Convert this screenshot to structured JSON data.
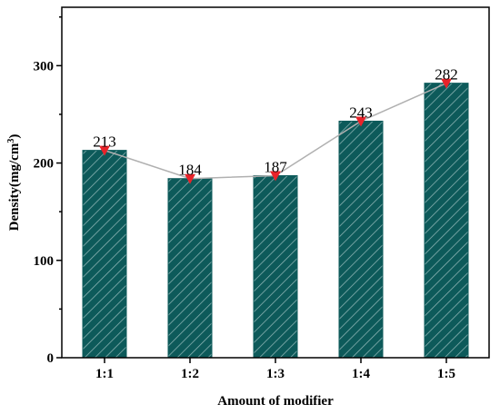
{
  "chart_data": {
    "type": "bar",
    "categories": [
      "1:1",
      "1:2",
      "1:3",
      "1:4",
      "1:5"
    ],
    "values": [
      213,
      184,
      187,
      243,
      282
    ],
    "data_labels": [
      "213",
      "184",
      "187",
      "243",
      "282"
    ],
    "title": "",
    "xlabel": "Amount of modifier",
    "ylabel_main": "Density(mg/cm",
    "ylabel_sup": "3",
    "ylabel_close": ")",
    "ylim": [
      0,
      360
    ],
    "yticks": [
      0,
      100,
      200,
      300
    ],
    "ytick_labels": [
      "0",
      "100",
      "200",
      "300"
    ],
    "grid": false,
    "legend": "none",
    "bar_fill": "hatched",
    "overlay_line": true,
    "overlay_marker": "triangle-down"
  },
  "colors": {
    "bar": "#0d5a5a",
    "hatch": "#8fb5b5",
    "line": "#b0b0b0",
    "marker": "#e8232a",
    "axis": "#000000"
  }
}
